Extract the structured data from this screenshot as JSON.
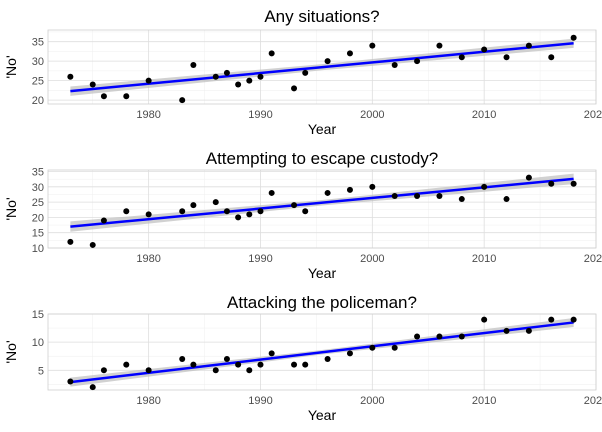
{
  "chart_data": [
    {
      "type": "scatter",
      "title": "Any situations?",
      "xlabel": "Year",
      "ylabel": "'No'",
      "xlim": [
        1971,
        2020
      ],
      "ylim": [
        19,
        38
      ],
      "xticks": [
        1980,
        1990,
        2000,
        2010,
        2020
      ],
      "yticks": [
        20,
        25,
        30,
        35
      ],
      "grid": true,
      "series": [
        {
          "points": [
            [
              1973,
              26
            ],
            [
              1975,
              24
            ],
            [
              1976,
              21
            ],
            [
              1978,
              21
            ],
            [
              1980,
              25
            ],
            [
              1983,
              20
            ],
            [
              1984,
              29
            ],
            [
              1986,
              26
            ],
            [
              1987,
              27
            ],
            [
              1988,
              24
            ],
            [
              1989,
              25
            ],
            [
              1990,
              26
            ],
            [
              1991,
              32
            ],
            [
              1993,
              23
            ],
            [
              1994,
              27
            ],
            [
              1996,
              30
            ],
            [
              1998,
              32
            ],
            [
              2000,
              34
            ],
            [
              2002,
              29
            ],
            [
              2004,
              30
            ],
            [
              2006,
              34
            ],
            [
              2008,
              31
            ],
            [
              2010,
              33
            ],
            [
              2012,
              31
            ],
            [
              2014,
              34
            ],
            [
              2016,
              31
            ],
            [
              2018,
              36
            ]
          ],
          "color": "#000000"
        }
      ],
      "trend": {
        "x": [
          1973,
          2018
        ],
        "y": [
          22.3,
          34.6
        ],
        "ci_halfwidth": [
          1.2,
          0.8,
          1.2
        ],
        "color": "#0000ff",
        "band_color": "#bdbdbd"
      }
    },
    {
      "type": "scatter",
      "title": "Attempting to escape custody?",
      "xlabel": "Year",
      "ylabel": "'No'",
      "xlim": [
        1971,
        2020
      ],
      "ylim": [
        10,
        35.5
      ],
      "xticks": [
        1980,
        1990,
        2000,
        2010,
        2020
      ],
      "yticks": [
        10,
        15,
        20,
        25,
        30,
        35
      ],
      "grid": true,
      "series": [
        {
          "points": [
            [
              1973,
              12
            ],
            [
              1975,
              11
            ],
            [
              1976,
              19
            ],
            [
              1978,
              22
            ],
            [
              1980,
              21
            ],
            [
              1983,
              22
            ],
            [
              1984,
              24
            ],
            [
              1986,
              25
            ],
            [
              1987,
              22
            ],
            [
              1988,
              20
            ],
            [
              1989,
              21
            ],
            [
              1990,
              22
            ],
            [
              1991,
              28
            ],
            [
              1993,
              24
            ],
            [
              1994,
              22
            ],
            [
              1996,
              28
            ],
            [
              1998,
              29
            ],
            [
              2000,
              30
            ],
            [
              2002,
              27
            ],
            [
              2004,
              27
            ],
            [
              2006,
              27
            ],
            [
              2008,
              26
            ],
            [
              2010,
              30
            ],
            [
              2012,
              26
            ],
            [
              2014,
              33
            ],
            [
              2016,
              31
            ],
            [
              2018,
              31
            ]
          ],
          "color": "#000000"
        }
      ],
      "trend": {
        "x": [
          1973,
          2018
        ],
        "y": [
          17.0,
          32.6
        ],
        "ci_halfwidth": [
          1.7,
          0.9,
          1.7
        ],
        "color": "#0000ff",
        "band_color": "#bdbdbd"
      }
    },
    {
      "type": "scatter",
      "title": "Attacking the policeman?",
      "xlabel": "Year",
      "ylabel": "'No'",
      "xlim": [
        1971,
        2020
      ],
      "ylim": [
        1.5,
        15
      ],
      "xticks": [
        1980,
        1990,
        2000,
        2010,
        2020
      ],
      "yticks": [
        5,
        10,
        15
      ],
      "grid": true,
      "series": [
        {
          "points": [
            [
              1973,
              3
            ],
            [
              1975,
              2
            ],
            [
              1976,
              5
            ],
            [
              1978,
              6
            ],
            [
              1980,
              5
            ],
            [
              1983,
              7
            ],
            [
              1984,
              6
            ],
            [
              1986,
              5
            ],
            [
              1987,
              7
            ],
            [
              1988,
              6
            ],
            [
              1989,
              5
            ],
            [
              1990,
              6
            ],
            [
              1991,
              8
            ],
            [
              1993,
              6
            ],
            [
              1994,
              6
            ],
            [
              1996,
              7
            ],
            [
              1998,
              8
            ],
            [
              2000,
              9
            ],
            [
              2002,
              9
            ],
            [
              2004,
              11
            ],
            [
              2006,
              11
            ],
            [
              2008,
              11
            ],
            [
              2010,
              14
            ],
            [
              2012,
              12
            ],
            [
              2014,
              12
            ],
            [
              2016,
              14
            ],
            [
              2018,
              14
            ]
          ],
          "color": "#000000"
        }
      ],
      "trend": {
        "x": [
          1973,
          2018
        ],
        "y": [
          2.9,
          13.5
        ],
        "ci_halfwidth": [
          0.8,
          0.4,
          0.8
        ],
        "color": "#0000ff",
        "band_color": "#bdbdbd"
      }
    }
  ]
}
